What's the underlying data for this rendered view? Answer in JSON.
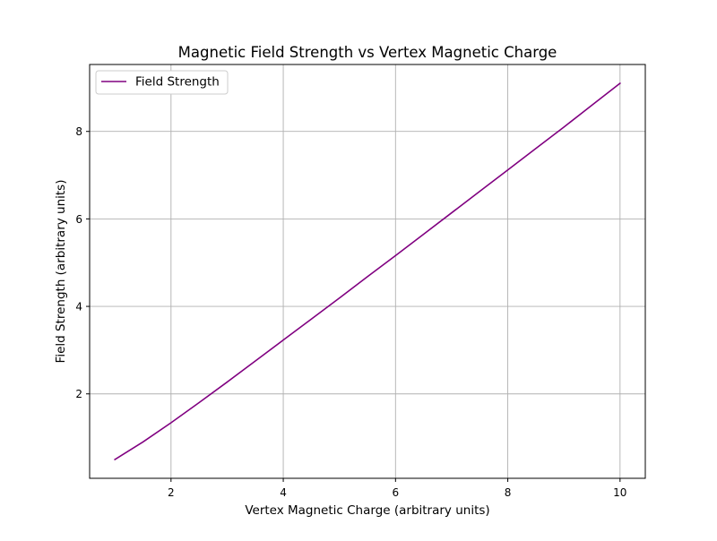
{
  "chart_data": {
    "type": "line",
    "title": "Magnetic Field Strength vs Vertex Magnetic Charge",
    "xlabel": "Vertex Magnetic Charge (arbitrary units)",
    "ylabel": "Field Strength (arbitrary units)",
    "xlim": [
      0.55,
      10.45
    ],
    "ylim": [
      0.07,
      9.53
    ],
    "xticks": [
      2,
      4,
      6,
      8,
      10
    ],
    "yticks": [
      2,
      4,
      6,
      8
    ],
    "grid": true,
    "legend_position": "top-left",
    "series": [
      {
        "name": "Field Strength",
        "color": "#800080",
        "x": [
          1,
          1.5,
          2,
          2.5,
          3,
          3.5,
          4,
          4.5,
          5,
          5.5,
          6,
          6.5,
          7,
          7.5,
          8,
          8.5,
          9,
          9.5,
          10
        ],
        "y": [
          0.5,
          0.9,
          1.34,
          1.8,
          2.27,
          2.75,
          3.23,
          3.71,
          4.19,
          4.68,
          5.16,
          5.65,
          6.14,
          6.63,
          7.12,
          7.61,
          8.1,
          8.6,
          9.1
        ]
      }
    ]
  }
}
